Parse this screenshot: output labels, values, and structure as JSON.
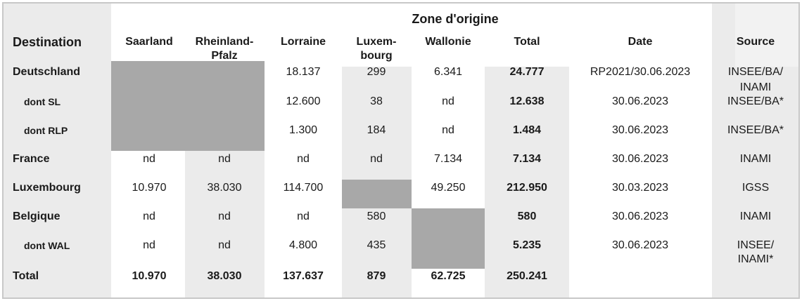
{
  "header": {
    "group_label": "Zone d'origine",
    "destination_label": "Destination",
    "columns": [
      "Saarland",
      "Rheinland-\nPfalz",
      "Lorraine",
      "Luxem-\nbourg",
      "Wallonie",
      "Total",
      "Date",
      "Source"
    ]
  },
  "rows": [
    {
      "label": "Deutschland",
      "values": [
        "",
        "",
        "18.137",
        "299",
        "6.341",
        "24.777"
      ],
      "date": "RP2021/30.06.2023",
      "source": "INSEE/BA/\nINAMI"
    },
    {
      "label": "dont SL",
      "values": [
        "",
        "",
        "12.600",
        "38",
        "nd",
        "12.638"
      ],
      "date": "30.06.2023",
      "source": "INSEE/BA*"
    },
    {
      "label": "dont RLP",
      "values": [
        "",
        "",
        "1.300",
        "184",
        "nd",
        "1.484"
      ],
      "date": "30.06.2023",
      "source": "INSEE/BA*"
    },
    {
      "label": "France",
      "values": [
        "nd",
        "nd",
        "nd",
        "nd",
        "7.134",
        "7.134"
      ],
      "date": "30.06.2023",
      "source": "INAMI"
    },
    {
      "label": "Luxembourg",
      "values": [
        "10.970",
        "38.030",
        "114.700",
        "",
        "49.250",
        "212.950"
      ],
      "date": "30.03.2023",
      "source": "IGSS"
    },
    {
      "label": "Belgique",
      "values": [
        "nd",
        "nd",
        "nd",
        "580",
        "",
        "580"
      ],
      "date": "30.06.2023",
      "source": "INAMI"
    },
    {
      "label": "dont WAL",
      "values": [
        "nd",
        "nd",
        "4.800",
        "435",
        "",
        "5.235"
      ],
      "date": "30.06.2023",
      "source": "INSEE/\nINAMI*"
    },
    {
      "label": "Total",
      "values": [
        "10.970",
        "38.030",
        "137.637",
        "879",
        "62.725",
        "250.241"
      ],
      "date": "",
      "source": ""
    }
  ]
}
